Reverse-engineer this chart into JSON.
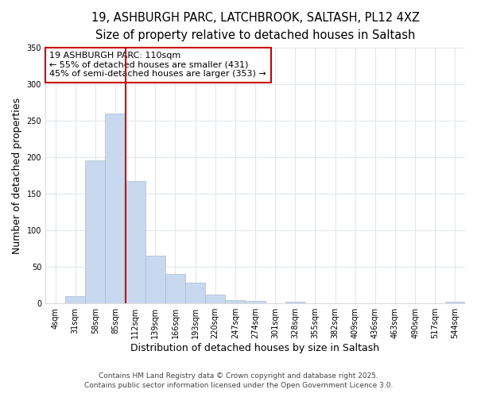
{
  "title_line1": "19, ASHBURGH PARC, LATCHBROOK, SALTASH, PL12 4XZ",
  "title_line2": "Size of property relative to detached houses in Saltash",
  "xlabel": "Distribution of detached houses by size in Saltash",
  "ylabel": "Number of detached properties",
  "bar_labels": [
    "4sqm",
    "31sqm",
    "58sqm",
    "85sqm",
    "112sqm",
    "139sqm",
    "166sqm",
    "193sqm",
    "220sqm",
    "247sqm",
    "274sqm",
    "301sqm",
    "328sqm",
    "355sqm",
    "382sqm",
    "409sqm",
    "436sqm",
    "463sqm",
    "490sqm",
    "517sqm",
    "544sqm"
  ],
  "bar_values": [
    0,
    10,
    196,
    260,
    168,
    65,
    40,
    29,
    12,
    5,
    3,
    0,
    2,
    0,
    0,
    0,
    0,
    0,
    0,
    0,
    2
  ],
  "bar_color": "#c8d8ee",
  "bar_edgecolor": "#aabbd0",
  "vline_x": 3.5,
  "vline_color": "#cc0000",
  "annotation_line1": "19 ASHBURGH PARC: 110sqm",
  "annotation_line2": "← 55% of detached houses are smaller (431)",
  "annotation_line3": "45% of semi-detached houses are larger (353) →",
  "ylim": [
    0,
    350
  ],
  "yticks": [
    0,
    50,
    100,
    150,
    200,
    250,
    300,
    350
  ],
  "background_color": "#ffffff",
  "grid_color": "#e0e8f0",
  "title_fontsize": 10.5,
  "subtitle_fontsize": 9,
  "axis_label_fontsize": 9,
  "tick_fontsize": 7,
  "annotation_fontsize": 8,
  "footer_line1": "Contains HM Land Registry data © Crown copyright and database right 2025.",
  "footer_line2": "Contains public sector information licensed under the Open Government Licence 3.0."
}
